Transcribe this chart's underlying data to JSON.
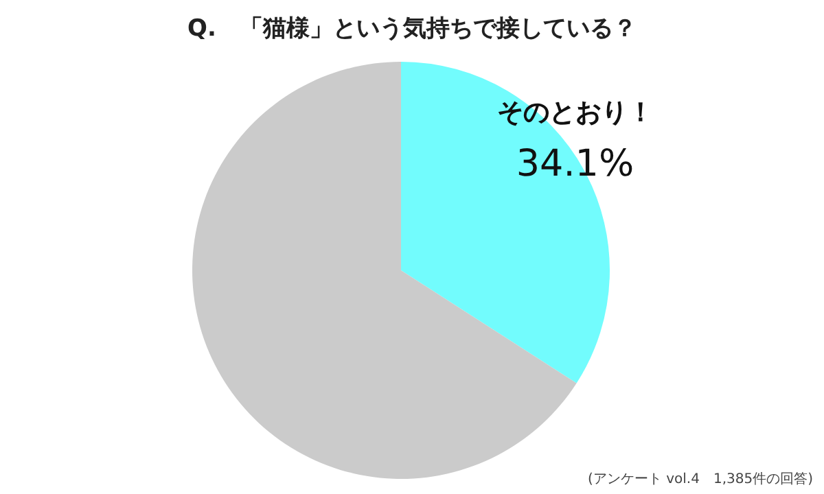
{
  "chart_data": {
    "type": "pie",
    "title": "Q.　「猫様」という気持ちで接している？",
    "categories": [
      "そのとおり！",
      null
    ],
    "values": [
      34.1,
      65.9
    ],
    "colors": [
      "#72fcfd",
      "#cbcbcb"
    ],
    "value_labels": [
      "34.1%",
      null
    ],
    "annotations": [
      "(アンケート vol.4　1,385件の回答)"
    ]
  }
}
